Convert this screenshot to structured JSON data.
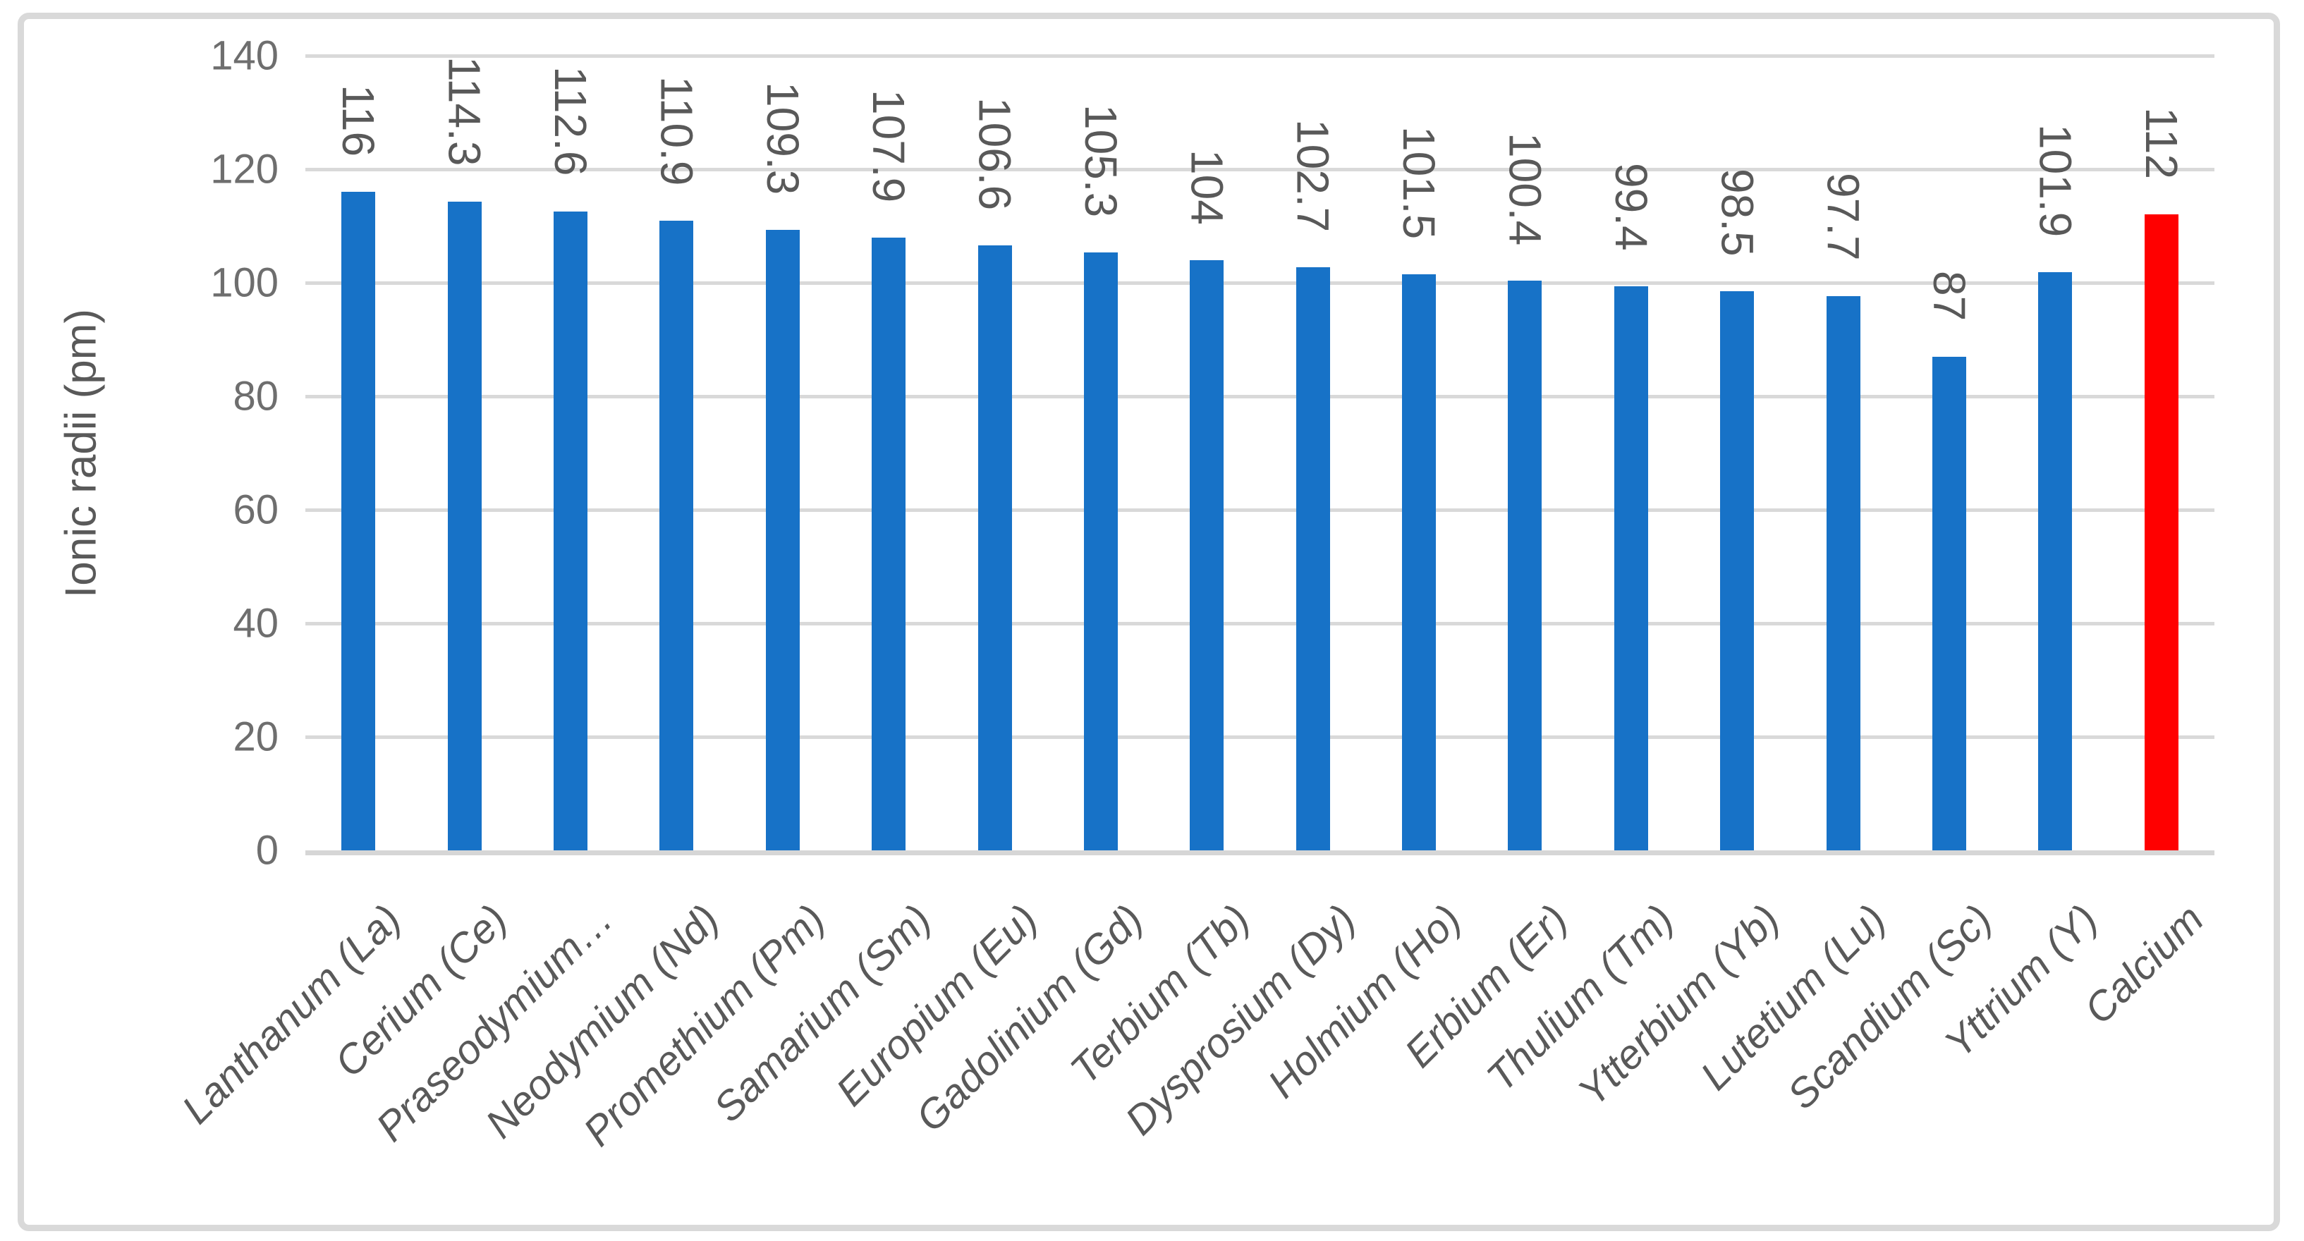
{
  "chart_data": {
    "type": "bar",
    "title": "",
    "xlabel": "",
    "ylabel": "Ionic radii (pm)",
    "ylim": [
      0,
      140
    ],
    "yticks": [
      0,
      20,
      40,
      60,
      80,
      100,
      120,
      140
    ],
    "grid": true,
    "legend": false,
    "categories": [
      "Lanthanum (La)",
      "Cerium (Ce)",
      "Praseodymium…",
      "Neodymium (Nd)",
      "Promethium (Pm)",
      "Samarium (Sm)",
      "Europium (Eu)",
      "Gadolinium (Gd)",
      "Terbium (Tb)",
      "Dysprosium (Dy)",
      "Holmium (Ho)",
      "Erbium (Er)",
      "Thulium (Tm)",
      "Ytterbium (Yb)",
      "Lutetium (Lu)",
      "Scandium (Sc)",
      "Yttrium (Y)",
      "Calcium"
    ],
    "values": [
      116,
      114.3,
      112.6,
      110.9,
      109.3,
      107.9,
      106.6,
      105.3,
      104,
      102.7,
      101.5,
      100.4,
      99.4,
      98.5,
      97.7,
      87,
      101.9,
      112
    ],
    "data_labels": [
      "116",
      "114.3",
      "112.6",
      "110.9",
      "109.3",
      "107.9",
      "106.6",
      "105.3",
      "104",
      "102.7",
      "101.5",
      "100.4",
      "99.4",
      "98.5",
      "97.7",
      "87",
      "101.9",
      "112"
    ],
    "highlight_index": 17,
    "colors": {
      "bar": "#1772c7",
      "highlight": "#ff0000",
      "gridline": "#d9d9d9",
      "axis_line": "#d6d6d6",
      "tick_text": "#6e6e6e",
      "label_text": "#595959",
      "frame_border": "#d9d9d9",
      "background": "#ffffff"
    }
  }
}
